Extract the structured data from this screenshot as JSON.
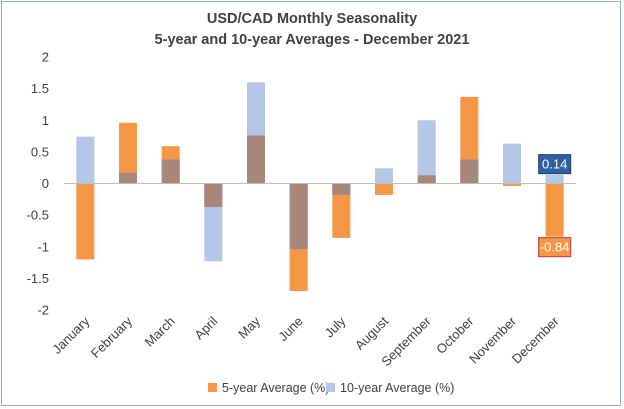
{
  "chart_data": {
    "type": "bar",
    "title": "USD/CAD Monthly Seasonality",
    "subtitle": "5-year and 10-year Averages - December 2021",
    "categories": [
      "January",
      "February",
      "March",
      "April",
      "May",
      "June",
      "July",
      "August",
      "September",
      "October",
      "November",
      "December"
    ],
    "series": [
      {
        "name": "5-year Average (%)",
        "color": "#f79646",
        "values": [
          -1.2,
          0.96,
          0.59,
          -0.37,
          0.76,
          -1.7,
          -0.86,
          -0.18,
          0.13,
          1.37,
          -0.04,
          -0.84
        ]
      },
      {
        "name": "10-year Average (%)",
        "color": "#b4c7e7",
        "values": [
          0.74,
          0.17,
          0.38,
          -1.23,
          1.6,
          -1.04,
          -0.18,
          0.24,
          1.0,
          0.38,
          0.63,
          0.14
        ]
      }
    ],
    "overlap_color": "#a8877b",
    "yticks": [
      "2",
      "1.5",
      "1",
      "0.5",
      "0",
      "-0.5",
      "-1",
      "-1.5",
      "-2"
    ],
    "ylim": [
      -2,
      2
    ],
    "grid": false,
    "legend_position": "bottom",
    "annotations": [
      {
        "label": "0.14",
        "month": "December",
        "series": "10-year Average (%)",
        "color": "#2e5f9e"
      },
      {
        "label": "-0.84",
        "month": "December",
        "series": "5-year Average (%)",
        "color": "#f79646"
      }
    ]
  }
}
